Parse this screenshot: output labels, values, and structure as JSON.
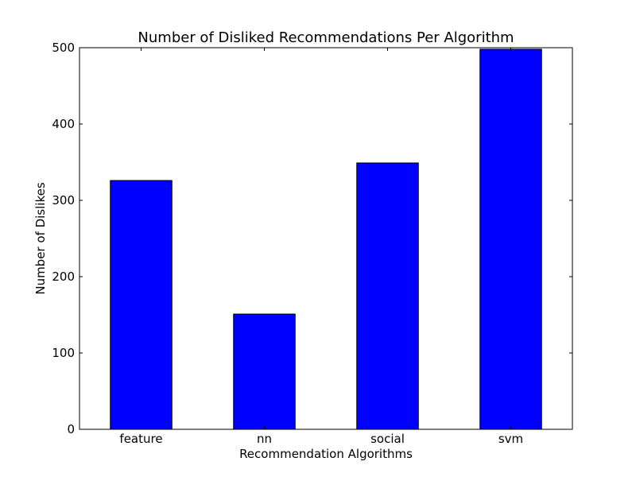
{
  "chart_data": {
    "type": "bar",
    "title": "Number of Disliked Recommendations Per Algorithm",
    "xlabel": "Recommendation Algorithms",
    "ylabel": "Number of Dislikes",
    "categories": [
      "feature",
      "nn",
      "social",
      "svm"
    ],
    "values": [
      326,
      151,
      349,
      498
    ],
    "ylim": [
      0,
      500
    ],
    "yticks": [
      0,
      100,
      200,
      300,
      400,
      500
    ],
    "bar_color": "#0000ff",
    "grid": false,
    "legend": "none"
  }
}
